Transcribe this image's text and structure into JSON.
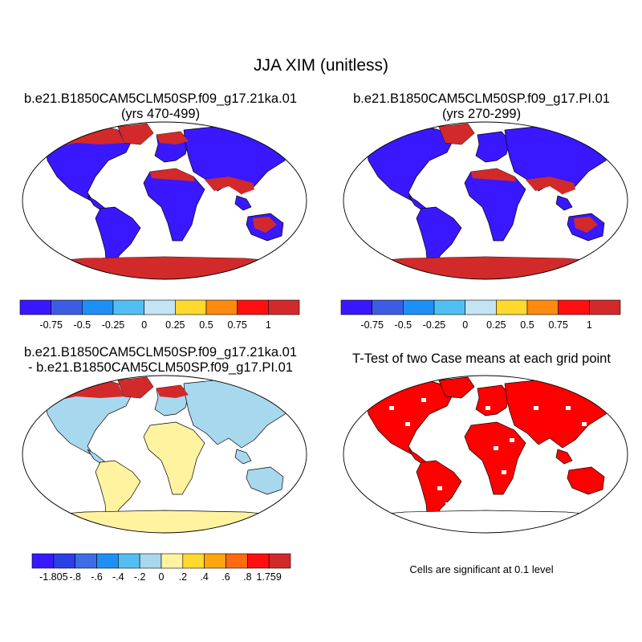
{
  "figure": {
    "title": "JJA XIM (unitless)",
    "note": "Cells are significant at 0.1 level"
  },
  "panels": [
    {
      "id": "p1",
      "line1": "b.e21.B1850CAM5CLM50SP.f09_g17.21ka.01",
      "line2": "(yrs 470-499)"
    },
    {
      "id": "p2",
      "line1": "b.e21.B1850CAM5CLM50SP.f09_g17.PI.01",
      "line2": "(yrs 270-299)"
    },
    {
      "id": "p3",
      "line1": "b.e21.B1850CAM5CLM50SP.f09_g17.21ka.01",
      "line2": "- b.e21.B1850CAM5CLM50SP.f09_g17.PI.01"
    },
    {
      "id": "p4",
      "line1": "T-Test of two Case means at each grid point",
      "line2": ""
    }
  ],
  "colorbars": {
    "abs": {
      "colors": [
        "#3a18ff",
        "#3c5ce4",
        "#1e90f5",
        "#52bff2",
        "#c4e4f4",
        "#ffd92e",
        "#ff8a10",
        "#ff1010",
        "#d22a2a"
      ],
      "labels": [
        "-0.75",
        "-0.5",
        "-0.25",
        "0",
        "0.25",
        "0.5",
        "0.75",
        "1"
      ]
    },
    "diff": {
      "colors": [
        "#3a18ff",
        "#2c3ee6",
        "#3c6ce6",
        "#1e90f5",
        "#52bff2",
        "#a8d8ee",
        "#fff3a0",
        "#ffd92e",
        "#ffa510",
        "#ff6a10",
        "#ff1010",
        "#d22a2a"
      ],
      "labels": [
        "-1.805",
        "-.8",
        "-.6",
        "-.4",
        "-.2",
        "0",
        ".2",
        ".4",
        ".6",
        ".8",
        "1.759"
      ]
    }
  },
  "colors": {
    "land_low": "#3a18ff",
    "land_ocean_edge": "#52bff2",
    "land_high": "#d22a2a",
    "diff_neg": "#a8d8ee",
    "diff_pos": "#fff3a0",
    "significant": "#ff0000"
  }
}
